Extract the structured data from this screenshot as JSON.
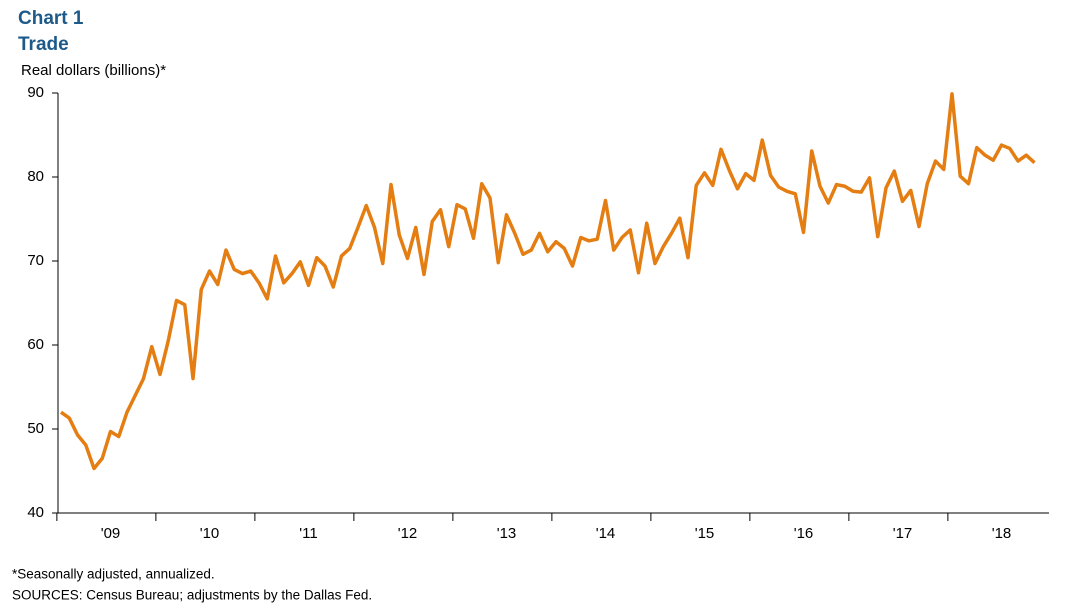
{
  "chart_data": {
    "type": "line",
    "title": "Chart 1",
    "subtitle": "Trade",
    "y_label": "Real dollars  (billions)*",
    "notes": [
      "*Seasonally adjusted, annualized.",
      "SOURCES:  Census Bureau; adjustments by the Dallas Fed."
    ],
    "categories": [
      null,
      null,
      null,
      null,
      null,
      null,
      "'09",
      null,
      null,
      null,
      null,
      null,
      null,
      null,
      null,
      null,
      null,
      null,
      "'10",
      null,
      null,
      null,
      null,
      null,
      null,
      null,
      null,
      null,
      null,
      null,
      "'11",
      null,
      null,
      null,
      null,
      null,
      null,
      null,
      null,
      null,
      null,
      null,
      "'12",
      null,
      null,
      null,
      null,
      null,
      null,
      null,
      null,
      null,
      null,
      null,
      "'13",
      null,
      null,
      null,
      null,
      null,
      null,
      null,
      null,
      null,
      null,
      null,
      "'14",
      null,
      null,
      null,
      null,
      null,
      null,
      null,
      null,
      null,
      null,
      null,
      "'15",
      null,
      null,
      null,
      null,
      null,
      null,
      null,
      null,
      null,
      null,
      null,
      "'16",
      null,
      null,
      null,
      null,
      null,
      null,
      null,
      null,
      null,
      null,
      null,
      "'17",
      null,
      null,
      null,
      null,
      null,
      null,
      null,
      null,
      null,
      null,
      null,
      "'18",
      null,
      null,
      null,
      null
    ],
    "series": [
      {
        "color": "#e47d12",
        "values": [
          52,
          51.3,
          49.3,
          48.1,
          45.3,
          46.5,
          49.7,
          49.1,
          52,
          54,
          56,
          59.8,
          56.5,
          60.5,
          65.3,
          64.8,
          56,
          66.6,
          68.8,
          67.2,
          71.3,
          69,
          68.5,
          68.8,
          67.4,
          65.5,
          70.6,
          67.4,
          68.5,
          69.9,
          67.1,
          70.4,
          69.4,
          66.9,
          70.6,
          71.5,
          74,
          76.6,
          74,
          69.7,
          79.1,
          73.1,
          70.3,
          74,
          68.4,
          74.7,
          76.1,
          71.7,
          76.7,
          76.2,
          72.7,
          79.2,
          77.5,
          69.8,
          75.5,
          73.3,
          70.8,
          71.3,
          73.3,
          71.1,
          72.3,
          71.5,
          69.4,
          72.8,
          72.4,
          72.6,
          77.2,
          71.3,
          72.8,
          73.7,
          68.6,
          74.5,
          69.7,
          71.7,
          73.3,
          75.1,
          70.4,
          79,
          80.5,
          79,
          83.3,
          80.8,
          78.6,
          80.4,
          79.6,
          84.4,
          80.2,
          78.8,
          78.3,
          78,
          73.4,
          83.1,
          78.9,
          76.9,
          79.1,
          78.9,
          78.3,
          78.2,
          79.9,
          72.9,
          78.7,
          80.7,
          77.1,
          78.4,
          74.1,
          79.2,
          81.9,
          80.9,
          89.9,
          80.1,
          79.2,
          83.5,
          82.6,
          82,
          83.8,
          83.4,
          81.9,
          82.6,
          81.7
        ]
      }
    ],
    "ylim": [
      40,
      90
    ],
    "yticks": [
      40,
      50,
      60,
      70,
      80,
      90
    ],
    "grid": false
  }
}
